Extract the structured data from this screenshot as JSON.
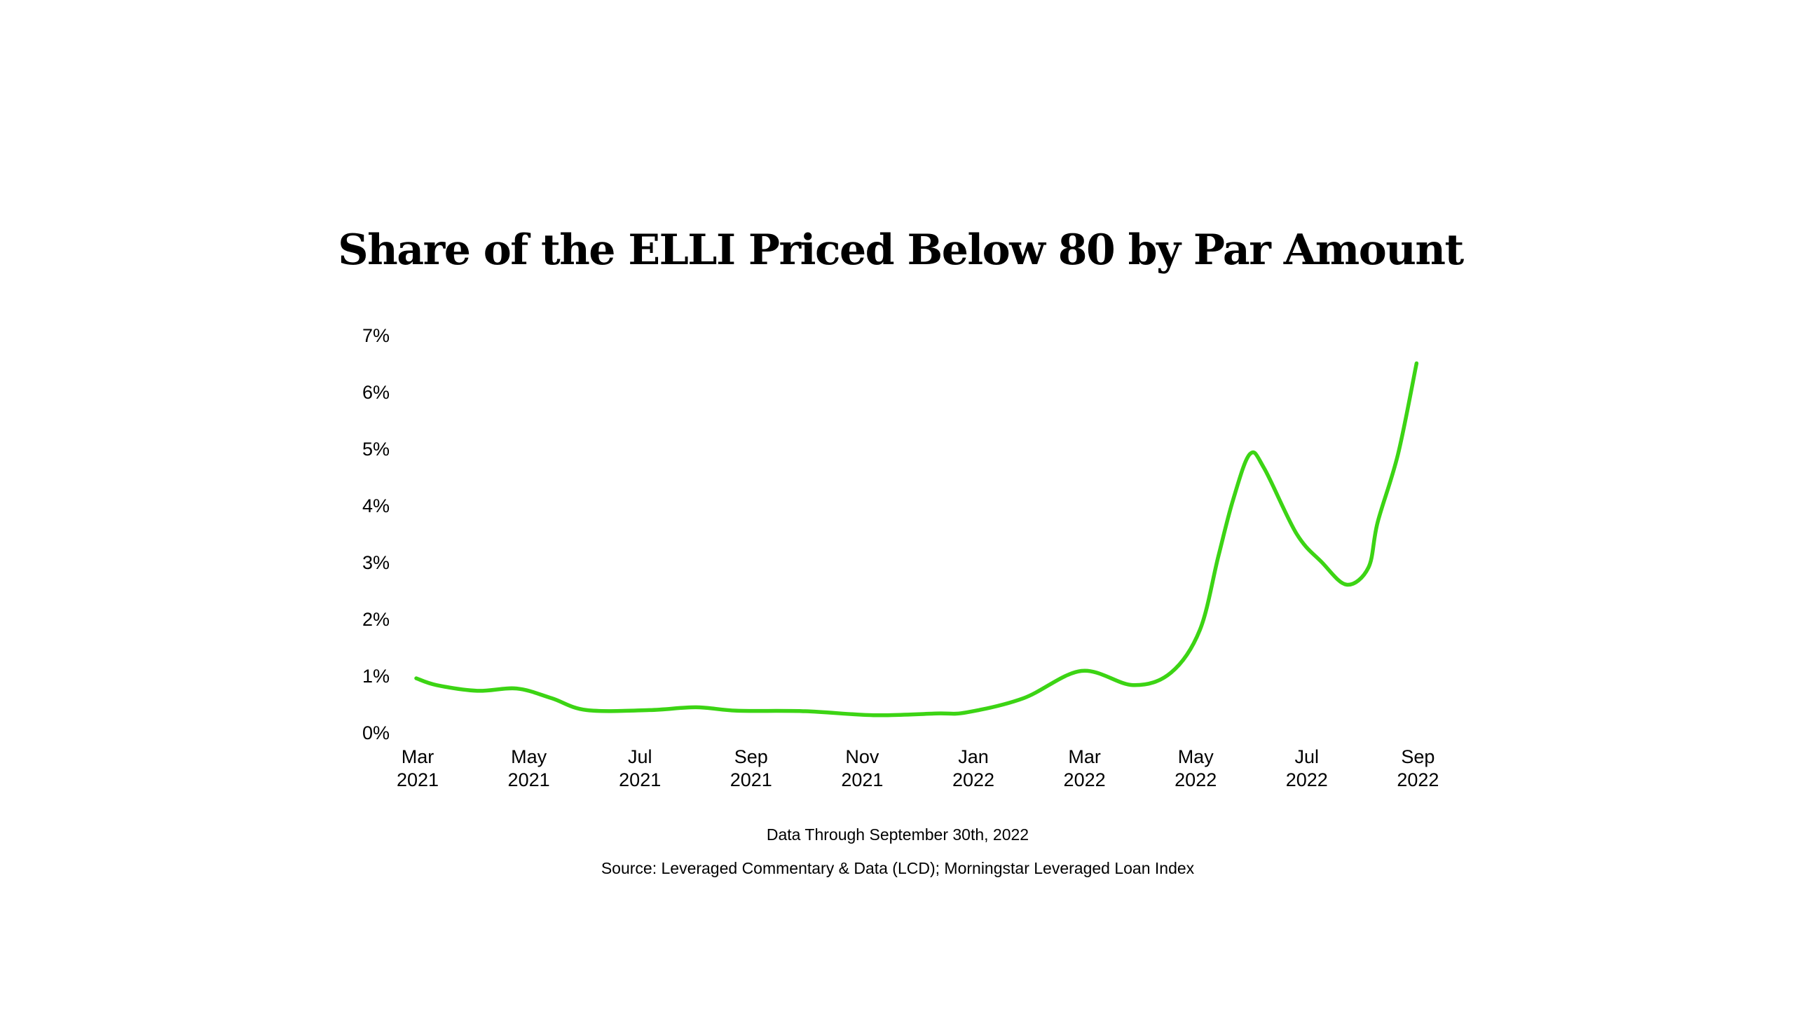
{
  "chart_data": {
    "type": "line",
    "title": "Share of the ELLI Priced Below 80 by Par Amount",
    "xlabel": "",
    "ylabel": "",
    "ylim": [
      0,
      7
    ],
    "y_ticks": [
      "0%",
      "1%",
      "2%",
      "3%",
      "4%",
      "5%",
      "6%",
      "7%"
    ],
    "x_ticks": [
      {
        "month": "Mar",
        "year": "2021"
      },
      {
        "month": "May",
        "year": "2021"
      },
      {
        "month": "Jul",
        "year": "2021"
      },
      {
        "month": "Sep",
        "year": "2021"
      },
      {
        "month": "Nov",
        "year": "2021"
      },
      {
        "month": "Jan",
        "year": "2022"
      },
      {
        "month": "Mar",
        "year": "2022"
      },
      {
        "month": "May",
        "year": "2022"
      },
      {
        "month": "Jul",
        "year": "2022"
      },
      {
        "month": "Sep",
        "year": "2022"
      }
    ],
    "grid": false,
    "line_color": "#3cd414",
    "series": [
      {
        "points": [
          [
            "2021-03-31",
            0.95
          ],
          [
            "2021-04-11",
            0.83
          ],
          [
            "2021-05-03",
            0.73
          ],
          [
            "2021-05-25",
            0.77
          ],
          [
            "2021-06-13",
            0.6
          ],
          [
            "2021-07-02",
            0.39
          ],
          [
            "2021-08-06",
            0.39
          ],
          [
            "2021-09-01",
            0.44
          ],
          [
            "2021-09-23",
            0.38
          ],
          [
            "2021-10-31",
            0.37
          ],
          [
            "2021-12-07",
            0.3
          ],
          [
            "2022-01-11",
            0.33
          ],
          [
            "2022-01-28",
            0.35
          ],
          [
            "2022-02-26",
            0.6
          ],
          [
            "2022-03-30",
            1.08
          ],
          [
            "2022-04-27",
            0.83
          ],
          [
            "2022-05-18",
            1.05
          ],
          [
            "2022-06-03",
            1.8
          ],
          [
            "2022-06-13",
            3.1
          ],
          [
            "2022-06-21",
            4.1
          ],
          [
            "2022-06-30",
            4.9
          ],
          [
            "2022-07-08",
            4.65
          ],
          [
            "2022-07-26",
            3.5
          ],
          [
            "2022-08-09",
            3.0
          ],
          [
            "2022-08-23",
            2.6
          ],
          [
            "2022-09-04",
            2.9
          ],
          [
            "2022-09-09",
            3.7
          ],
          [
            "2022-09-20",
            4.9
          ],
          [
            "2022-09-30",
            6.5
          ]
        ]
      }
    ]
  },
  "footer": {
    "note": "Data Through September 30th, 2022",
    "source": "Source: Leveraged Commentary & Data (LCD); Morningstar Leveraged Loan Index"
  }
}
